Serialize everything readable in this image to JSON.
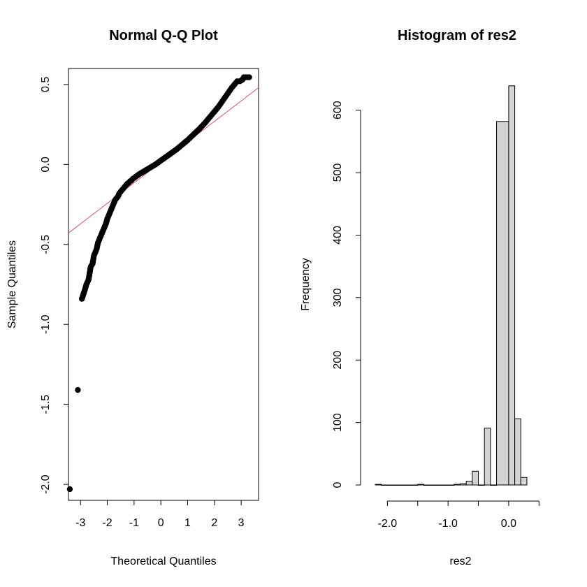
{
  "chart_data": [
    {
      "type": "scatter",
      "title": "Normal Q-Q Plot",
      "xlabel": "Theoretical Quantiles",
      "ylabel": "Sample Quantiles",
      "xlim": [
        -3.45,
        3.65
      ],
      "ylim": [
        -2.1,
        0.6
      ],
      "x_ticks": [
        -3,
        -2,
        -1,
        0,
        1,
        2,
        3
      ],
      "x_tick_labels": [
        "-3",
        "-2",
        "-1",
        "0",
        "1",
        "2",
        "3"
      ],
      "y_ticks": [
        -2.0,
        -1.5,
        -1.0,
        -0.5,
        0.0,
        0.5
      ],
      "y_tick_labels": [
        "-2.0",
        "-1.5",
        "-1.0",
        "-0.5",
        "0.0",
        "0.5"
      ],
      "point_color": "#000000",
      "reference_line": {
        "intercept": 0.013,
        "slope": 0.128,
        "color": "#DF536B"
      },
      "series": [
        {
          "x": [
            -3.4,
            -3.1,
            -2.95,
            -2.85,
            -2.78,
            -2.7,
            -2.62,
            -2.55,
            -2.5,
            -2.45,
            -2.4,
            -2.35,
            -2.3,
            -2.25,
            -2.2,
            -2.15,
            -2.1,
            -2.05,
            -2.0,
            -1.95,
            -1.9,
            -1.85,
            -1.8,
            -1.75,
            -1.7,
            -1.65,
            -1.6,
            -1.55,
            -1.5,
            -1.45,
            -1.4,
            -1.35,
            -1.3,
            -1.25,
            -1.2,
            -1.15,
            -1.1,
            -1.05,
            -1.0,
            -0.95,
            -0.9,
            -0.85,
            -0.8,
            -0.75,
            -0.7,
            -0.65,
            -0.6,
            -0.55,
            -0.5,
            -0.45,
            -0.4,
            -0.35,
            -0.3,
            -0.25,
            -0.2,
            -0.15,
            -0.1,
            -0.05,
            0.0,
            0.05,
            0.1,
            0.15,
            0.2,
            0.25,
            0.3,
            0.35,
            0.4,
            0.45,
            0.5,
            0.55,
            0.6,
            0.65,
            0.7,
            0.75,
            0.8,
            0.85,
            0.9,
            0.95,
            1.0,
            1.05,
            1.1,
            1.15,
            1.2,
            1.25,
            1.3,
            1.35,
            1.4,
            1.45,
            1.5,
            1.55,
            1.6,
            1.65,
            1.7,
            1.75,
            1.8,
            1.85,
            1.9,
            1.95,
            2.0,
            2.05,
            2.1,
            2.15,
            2.2,
            2.25,
            2.3,
            2.35,
            2.4,
            2.45,
            2.5,
            2.55,
            2.6,
            2.65,
            2.7,
            2.75,
            2.8,
            2.85,
            2.95,
            3.05,
            3.1,
            3.3
          ],
          "y": [
            -2.03,
            -1.41,
            -0.84,
            -0.79,
            -0.75,
            -0.72,
            -0.64,
            -0.62,
            -0.57,
            -0.55,
            -0.53,
            -0.49,
            -0.47,
            -0.45,
            -0.43,
            -0.41,
            -0.39,
            -0.37,
            -0.34,
            -0.32,
            -0.3,
            -0.28,
            -0.26,
            -0.24,
            -0.22,
            -0.21,
            -0.2,
            -0.18,
            -0.17,
            -0.16,
            -0.15,
            -0.14,
            -0.13,
            -0.12,
            -0.115,
            -0.105,
            -0.1,
            -0.09,
            -0.085,
            -0.078,
            -0.072,
            -0.066,
            -0.06,
            -0.055,
            -0.05,
            -0.045,
            -0.04,
            -0.035,
            -0.03,
            -0.025,
            -0.02,
            -0.015,
            -0.01,
            -0.005,
            0.0,
            0.006,
            0.012,
            0.018,
            0.025,
            0.03,
            0.036,
            0.042,
            0.048,
            0.054,
            0.06,
            0.066,
            0.072,
            0.078,
            0.084,
            0.09,
            0.096,
            0.103,
            0.11,
            0.117,
            0.124,
            0.131,
            0.138,
            0.145,
            0.152,
            0.16,
            0.168,
            0.176,
            0.184,
            0.192,
            0.2,
            0.208,
            0.216,
            0.224,
            0.233,
            0.242,
            0.251,
            0.26,
            0.27,
            0.28,
            0.29,
            0.3,
            0.31,
            0.32,
            0.33,
            0.34,
            0.35,
            0.36,
            0.372,
            0.384,
            0.396,
            0.408,
            0.42,
            0.432,
            0.444,
            0.456,
            0.468,
            0.48,
            0.49,
            0.5,
            0.51,
            0.52,
            0.52,
            0.53,
            0.545,
            0.545
          ]
        }
      ]
    },
    {
      "type": "bar",
      "title": "Histogram of res2",
      "xlabel": "res2",
      "ylabel": "Frequency",
      "xlim": [
        -2.2,
        0.6
      ],
      "ylim": [
        0,
        650
      ],
      "x_ticks": [
        -2.0,
        -1.5,
        -1.0,
        -0.5,
        0.0,
        0.5
      ],
      "x_tick_labels": [
        "-2.0",
        "",
        "-1.0",
        "",
        "0.0",
        ""
      ],
      "y_ticks": [
        0,
        100,
        200,
        300,
        400,
        500,
        600
      ],
      "y_tick_labels": [
        "0",
        "100",
        "200",
        "300",
        "400",
        "500",
        "600"
      ],
      "bar_color": "#D3D3D3",
      "bins": [
        {
          "from": -2.2,
          "to": -2.1,
          "count": 1
        },
        {
          "from": -2.1,
          "to": -2.0,
          "count": 0
        },
        {
          "from": -2.0,
          "to": -1.9,
          "count": 0
        },
        {
          "from": -1.9,
          "to": -1.8,
          "count": 0
        },
        {
          "from": -1.8,
          "to": -1.7,
          "count": 0
        },
        {
          "from": -1.7,
          "to": -1.6,
          "count": 0
        },
        {
          "from": -1.6,
          "to": -1.5,
          "count": 0
        },
        {
          "from": -1.5,
          "to": -1.4,
          "count": 1
        },
        {
          "from": -1.4,
          "to": -1.3,
          "count": 0
        },
        {
          "from": -1.3,
          "to": -1.2,
          "count": 0
        },
        {
          "from": -1.2,
          "to": -1.1,
          "count": 0
        },
        {
          "from": -1.1,
          "to": -1.0,
          "count": 0
        },
        {
          "from": -1.0,
          "to": -0.9,
          "count": 0
        },
        {
          "from": -0.9,
          "to": -0.8,
          "count": 1
        },
        {
          "from": -0.8,
          "to": -0.7,
          "count": 2
        },
        {
          "from": -0.7,
          "to": -0.6,
          "count": 6
        },
        {
          "from": -0.6,
          "to": -0.5,
          "count": 22
        },
        {
          "from": -0.5,
          "to": -0.4,
          "count": 0
        },
        {
          "from": -0.4,
          "to": -0.3,
          "count": 91
        },
        {
          "from": -0.3,
          "to": -0.2,
          "count": 0
        },
        {
          "from": -0.2,
          "to": 0.0,
          "count": 582
        },
        {
          "from": 0.0,
          "to": 0.1,
          "count": 639
        },
        {
          "from": 0.1,
          "to": 0.2,
          "count": 106
        },
        {
          "from": 0.2,
          "to": 0.3,
          "count": 12
        }
      ]
    }
  ]
}
